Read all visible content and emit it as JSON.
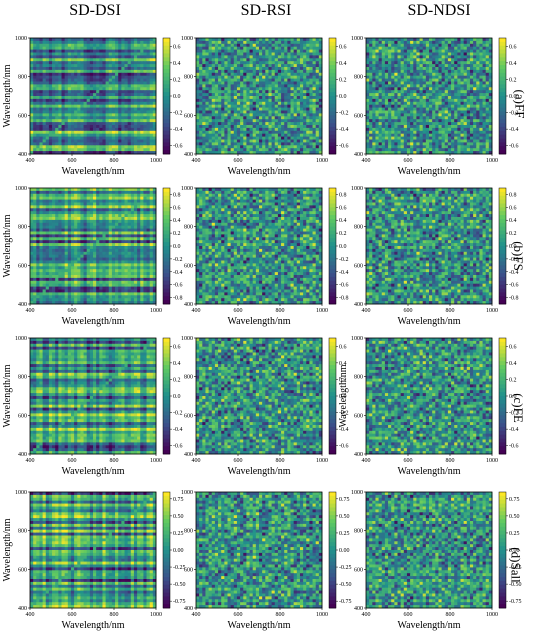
{
  "column_headers": [
    "SD-DSI",
    "SD-RSI",
    "SD-NDSI"
  ],
  "row_labels": [
    "(a)FF",
    "(b)FS",
    "(c)FE",
    "(d)Sall"
  ],
  "colormap": [
    "#440154",
    "#3b528b",
    "#21918c",
    "#5ec962",
    "#fde725"
  ],
  "chart_data": [
    {
      "type": "heatmap",
      "row": "(a)FF",
      "index": "SD-DSI",
      "xlabel": "Wavelength/nm",
      "ylabel": "Wavelength/nm",
      "xlim": [
        400,
        1000
      ],
      "ylim": [
        400,
        1000
      ],
      "xticks": [
        "400",
        "600",
        "800",
        "1000"
      ],
      "yticks": [
        "400",
        "600",
        "800",
        "1000"
      ],
      "colorbar_ticks": [
        "0.6",
        "0.4",
        "0.2",
        "0.0",
        "-0.2",
        "-0.4",
        "-0.6"
      ],
      "clim": [
        -0.7,
        0.7
      ]
    },
    {
      "type": "heatmap",
      "row": "(a)FF",
      "index": "SD-RSI",
      "xlabel": "Wavelength/nm",
      "ylabel": "",
      "xlim": [
        400,
        1000
      ],
      "ylim": [
        400,
        1000
      ],
      "xticks": [
        "400",
        "600",
        "800",
        "1000"
      ],
      "yticks": [
        "400",
        "600",
        "800",
        "1000"
      ],
      "colorbar_ticks": [
        "0.6",
        "0.4",
        "0.2",
        "0.0",
        "-0.2",
        "-0.4",
        "-0.6"
      ],
      "clim": [
        -0.7,
        0.7
      ]
    },
    {
      "type": "heatmap",
      "row": "(a)FF",
      "index": "SD-NDSI",
      "xlabel": "Wavelength/nm",
      "ylabel": "",
      "xlim": [
        400,
        1000
      ],
      "ylim": [
        400,
        1000
      ],
      "xticks": [
        "400",
        "600",
        "800",
        "1000"
      ],
      "yticks": [
        "400",
        "600",
        "800",
        "1000"
      ],
      "colorbar_ticks": [
        "0.6",
        "0.4",
        "0.2",
        "0.0",
        "-0.2",
        "-0.4",
        "-0.6"
      ],
      "clim": [
        -0.7,
        0.7
      ]
    },
    {
      "type": "heatmap",
      "row": "(b)FS",
      "index": "SD-DSI",
      "xlabel": "Wavelength/nm",
      "ylabel": "Wavelength/nm",
      "xlim": [
        400,
        1000
      ],
      "ylim": [
        400,
        1000
      ],
      "xticks": [
        "400",
        "600",
        "800",
        "1000"
      ],
      "yticks": [
        "400",
        "600",
        "800",
        "1000"
      ],
      "colorbar_ticks": [
        "0.8",
        "0.6",
        "0.4",
        "0.2",
        "0.0",
        "-0.2",
        "-0.4",
        "-0.6",
        "-0.8"
      ],
      "clim": [
        -0.9,
        0.9
      ]
    },
    {
      "type": "heatmap",
      "row": "(b)FS",
      "index": "SD-RSI",
      "xlabel": "Wavelength/nm",
      "ylabel": "",
      "xlim": [
        400,
        1000
      ],
      "ylim": [
        400,
        1000
      ],
      "xticks": [
        "400",
        "600",
        "800",
        "1000"
      ],
      "yticks": [
        "400",
        "600",
        "800",
        "1000"
      ],
      "colorbar_ticks": [
        "0.8",
        "0.6",
        "0.4",
        "0.2",
        "0.0",
        "-0.2",
        "-0.4",
        "-0.6",
        "-0.8"
      ],
      "clim": [
        -0.9,
        0.9
      ]
    },
    {
      "type": "heatmap",
      "row": "(b)FS",
      "index": "SD-NDSI",
      "xlabel": "Wavelength/nm",
      "ylabel": "",
      "xlim": [
        400,
        1000
      ],
      "ylim": [
        400,
        1000
      ],
      "xticks": [
        "400",
        "600",
        "800",
        "1000"
      ],
      "yticks": [
        "400",
        "600",
        "800",
        "1000"
      ],
      "colorbar_ticks": [
        "0.8",
        "0.6",
        "0.4",
        "0.2",
        "0.0",
        "-0.2",
        "-0.4",
        "-0.6",
        "-0.8"
      ],
      "clim": [
        -0.9,
        0.9
      ]
    },
    {
      "type": "heatmap",
      "row": "(c)FE",
      "index": "SD-DSI",
      "xlabel": "Wavelength/nm",
      "ylabel": "Wavelength/nm",
      "xlim": [
        400,
        1000
      ],
      "ylim": [
        400,
        1000
      ],
      "xticks": [
        "400",
        "600",
        "800",
        "1000"
      ],
      "yticks": [
        "400",
        "600",
        "800",
        "1000"
      ],
      "colorbar_ticks": [
        "0.6",
        "0.4",
        "0.2",
        "0.0",
        "-0.2",
        "-0.4",
        "-0.6"
      ],
      "clim": [
        -0.7,
        0.7
      ]
    },
    {
      "type": "heatmap",
      "row": "(c)FE",
      "index": "SD-RSI",
      "xlabel": "Wavelength/nm",
      "ylabel": "",
      "xlim": [
        400,
        1000
      ],
      "ylim": [
        400,
        1000
      ],
      "xticks": [
        "400",
        "600",
        "800",
        "1000"
      ],
      "yticks": [
        "400",
        "600",
        "800",
        "1000"
      ],
      "colorbar_ticks": [
        "0.6",
        "0.4",
        "0.2",
        "0.0",
        "-0.2",
        "-0.4",
        "-0.6"
      ],
      "clim": [
        -0.7,
        0.7
      ]
    },
    {
      "type": "heatmap",
      "row": "(c)FE",
      "index": "SD-NDSI",
      "xlabel": "Wavelength/nm",
      "ylabel": "Wavelength/nm",
      "xlim": [
        400,
        1000
      ],
      "ylim": [
        400,
        1000
      ],
      "xticks": [
        "400",
        "600",
        "800",
        "1000"
      ],
      "yticks": [
        "400",
        "600",
        "800",
        "1000"
      ],
      "colorbar_ticks": [
        "0.6",
        "0.4",
        "0.2",
        "0.0",
        "-0.2",
        "-0.4",
        "-0.6"
      ],
      "clim": [
        -0.7,
        0.7
      ]
    },
    {
      "type": "heatmap",
      "row": "(d)Sall",
      "index": "SD-DSI",
      "xlabel": "Wavelength/nm",
      "ylabel": "Wavelength/nm",
      "xlim": [
        400,
        1000
      ],
      "ylim": [
        400,
        1000
      ],
      "xticks": [
        "400",
        "600",
        "800",
        "1000"
      ],
      "yticks": [
        "400",
        "600",
        "800",
        "1000"
      ],
      "colorbar_ticks": [
        "0.75",
        "0.50",
        "0.25",
        "0.00",
        "-0.25",
        "-0.50",
        "-0.75"
      ],
      "clim": [
        -0.85,
        0.85
      ]
    },
    {
      "type": "heatmap",
      "row": "(d)Sall",
      "index": "SD-RSI",
      "xlabel": "Wavelength/nm",
      "ylabel": "",
      "xlim": [
        400,
        1000
      ],
      "ylim": [
        400,
        1000
      ],
      "xticks": [
        "400",
        "600",
        "800",
        "1000"
      ],
      "yticks": [
        "400",
        "600",
        "800",
        "1000"
      ],
      "colorbar_ticks": [
        "0.75",
        "0.50",
        "0.25",
        "0.00",
        "-0.25",
        "-0.50",
        "-0.75"
      ],
      "clim": [
        -0.85,
        0.85
      ]
    },
    {
      "type": "heatmap",
      "row": "(d)Sall",
      "index": "SD-NDSI",
      "xlabel": "Wavelength/nm",
      "ylabel": "",
      "xlim": [
        400,
        1000
      ],
      "ylim": [
        400,
        1000
      ],
      "xticks": [
        "400",
        "600",
        "800",
        "1000"
      ],
      "yticks": [
        "400",
        "600",
        "800",
        "1000"
      ],
      "colorbar_ticks": [
        "0.75",
        "0.50",
        "0.25",
        "0.00",
        "-0.25",
        "-0.50",
        "-0.75"
      ],
      "clim": [
        -0.85,
        0.85
      ]
    }
  ]
}
